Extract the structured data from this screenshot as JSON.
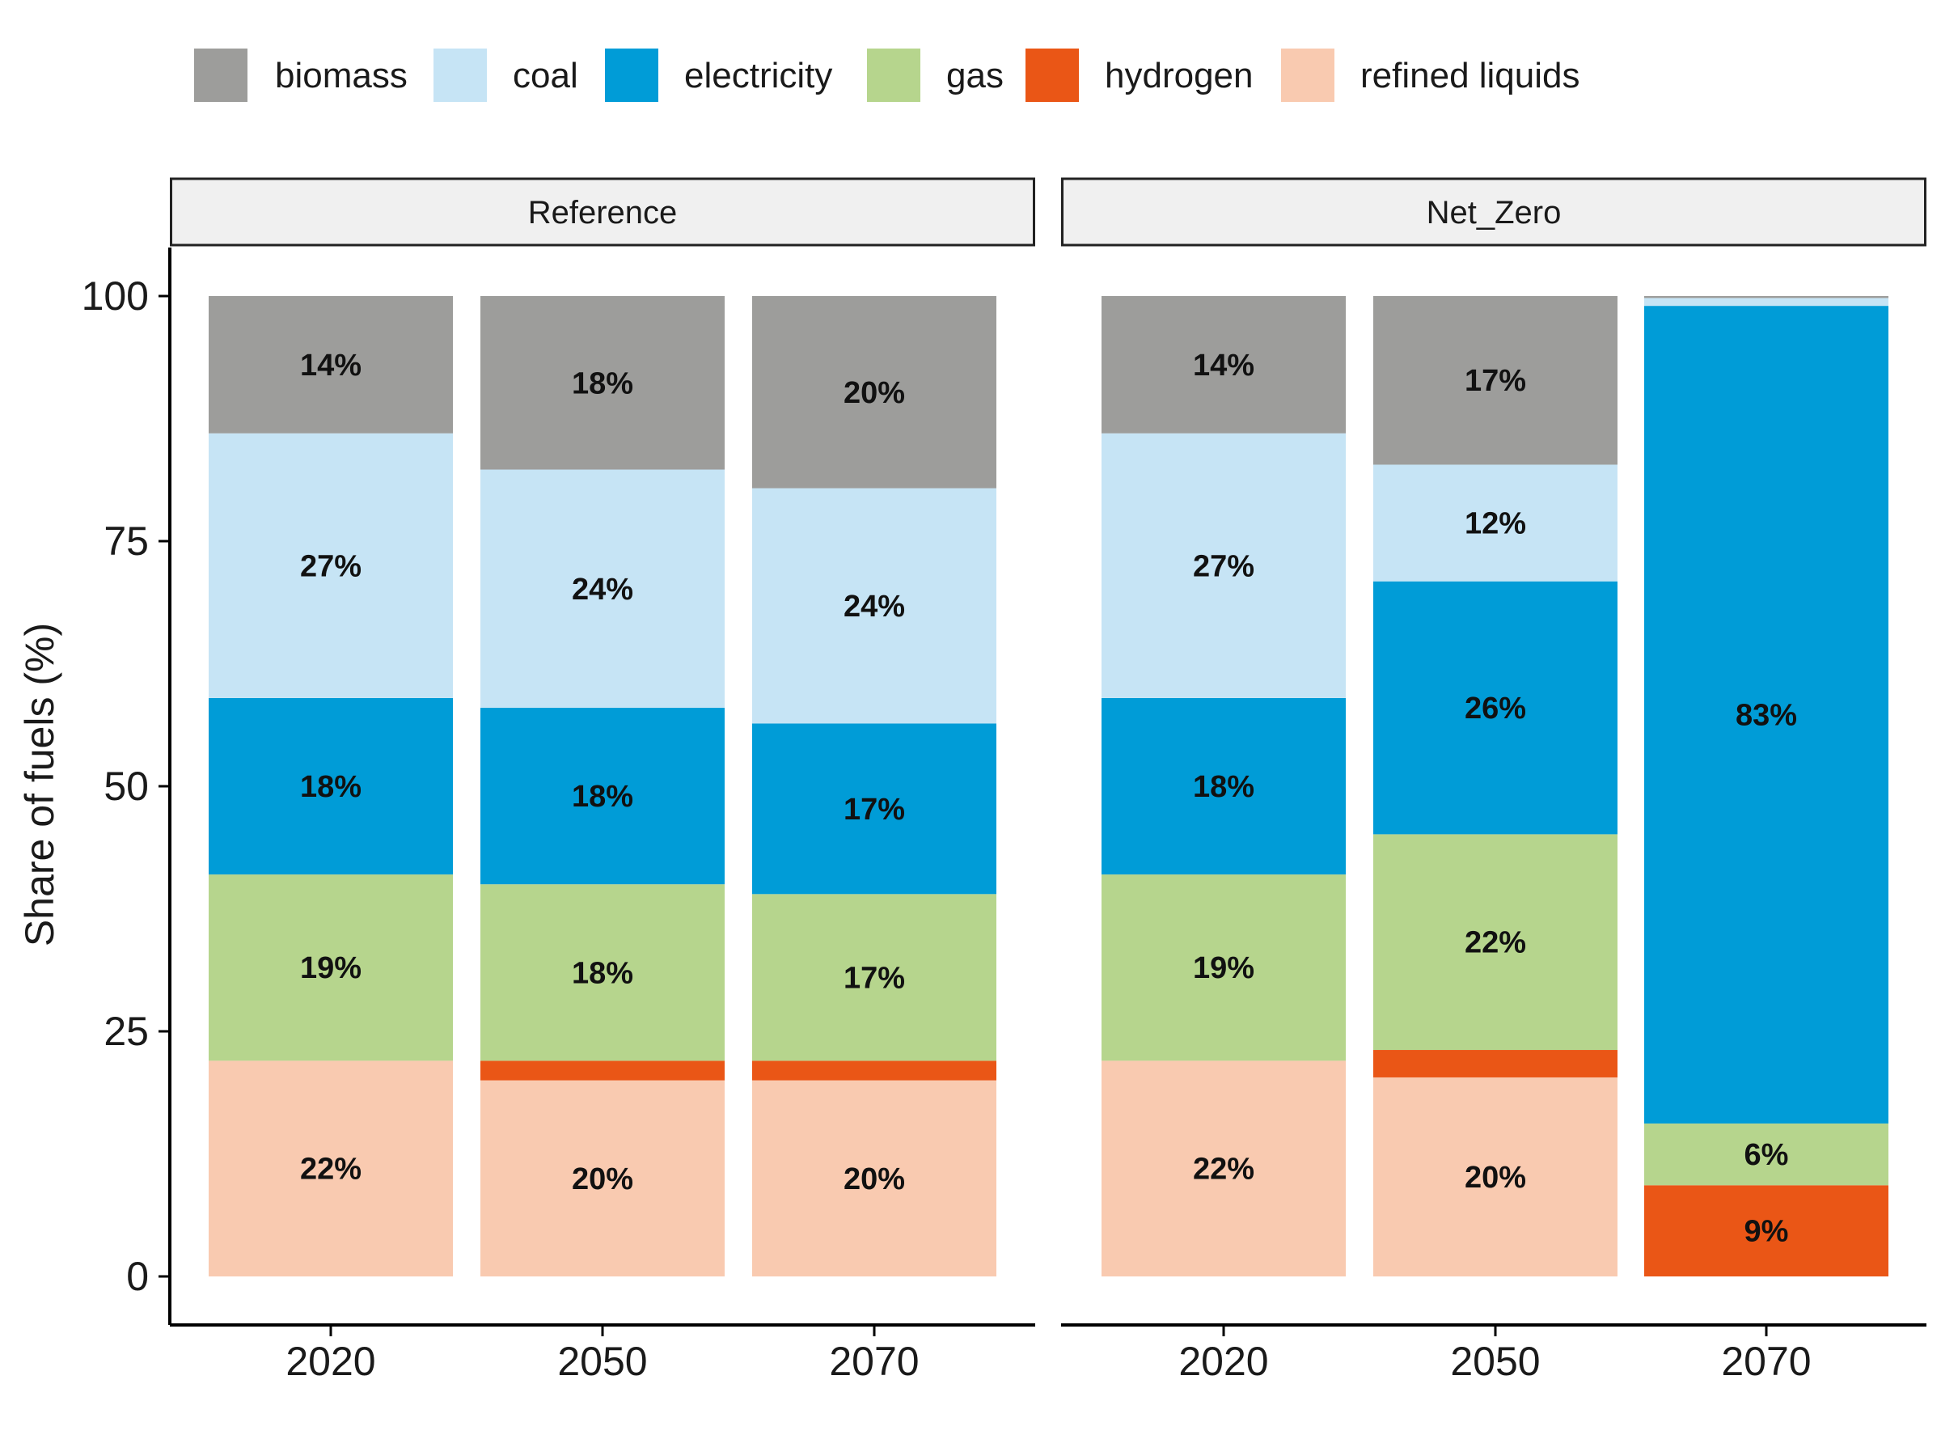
{
  "chart_data": {
    "type": "bar",
    "stacked": true,
    "ylabel": "Share of fuels (%)",
    "xlabel": "",
    "ylim": [
      0,
      100
    ],
    "yticks": [
      "0",
      "25",
      "50",
      "75",
      "100"
    ],
    "legend_position": "top",
    "legend": [
      {
        "name": "biomass",
        "color": "#9d9d9b"
      },
      {
        "name": "coal",
        "color": "#c6e4f5"
      },
      {
        "name": "electricity",
        "color": "#009cd7"
      },
      {
        "name": "gas",
        "color": "#b6d58d"
      },
      {
        "name": "hydrogen",
        "color": "#ea5616"
      },
      {
        "name": "refined liquids",
        "color": "#f9cab0"
      }
    ],
    "stack_order_bottom_to_top": [
      "refined liquids",
      "hydrogen",
      "gas",
      "electricity",
      "coal",
      "biomass"
    ],
    "panels": [
      {
        "name": "Reference",
        "categories": [
          "2020",
          "2050",
          "2070"
        ],
        "series": [
          {
            "name": "refined liquids",
            "values": [
              22,
              20,
              20
            ],
            "labels": [
              "22%",
              "20%",
              "20%"
            ]
          },
          {
            "name": "hydrogen",
            "values": [
              0,
              2,
              2
            ],
            "labels": [
              "",
              "",
              ""
            ]
          },
          {
            "name": "gas",
            "values": [
              19,
              18,
              17
            ],
            "labels": [
              "19%",
              "18%",
              "17%"
            ]
          },
          {
            "name": "electricity",
            "values": [
              18,
              18,
              17.4
            ],
            "labels": [
              "18%",
              "18%",
              "17%"
            ]
          },
          {
            "name": "coal",
            "values": [
              27,
              24.3,
              24
            ],
            "labels": [
              "27%",
              "24%",
              "24%"
            ]
          },
          {
            "name": "biomass",
            "values": [
              14,
              17.7,
              19.6
            ],
            "labels": [
              "14%",
              "18%",
              "20%"
            ]
          }
        ]
      },
      {
        "name": "Net_Zero",
        "categories": [
          "2020",
          "2050",
          "2070"
        ],
        "series": [
          {
            "name": "refined liquids",
            "values": [
              22,
              20.3,
              0
            ],
            "labels": [
              "22%",
              "20%",
              ""
            ]
          },
          {
            "name": "hydrogen",
            "values": [
              0,
              2.8,
              9.3
            ],
            "labels": [
              "",
              "",
              "9%"
            ]
          },
          {
            "name": "gas",
            "values": [
              19,
              22,
              6.3
            ],
            "labels": [
              "19%",
              "22%",
              "6%"
            ]
          },
          {
            "name": "electricity",
            "values": [
              18,
              25.8,
              83.4
            ],
            "labels": [
              "18%",
              "26%",
              "83%"
            ]
          },
          {
            "name": "coal",
            "values": [
              27,
              11.9,
              0.8
            ],
            "labels": [
              "27%",
              "12%",
              ""
            ]
          },
          {
            "name": "biomass",
            "values": [
              14,
              17.2,
              0.2
            ],
            "labels": [
              "14%",
              "17%",
              ""
            ]
          }
        ]
      }
    ]
  }
}
